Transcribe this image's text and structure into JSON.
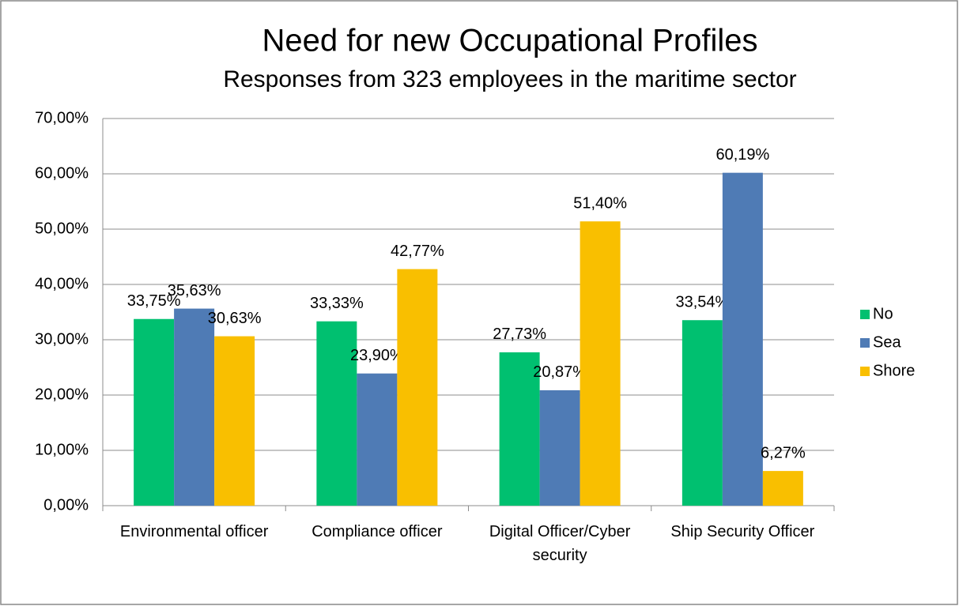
{
  "chart_data": {
    "type": "bar",
    "title": "Need for new Occupational Profiles",
    "subtitle": "Responses from 323 employees in the maritime sector",
    "categories": [
      "Environmental officer",
      "Compliance officer",
      "Digital Officer/Cyber security",
      "Ship Security Officer"
    ],
    "series": [
      {
        "name": "No",
        "color": "#00c070",
        "values": [
          33.75,
          33.33,
          27.73,
          33.54
        ],
        "value_labels": [
          "33,75%",
          "33,33%",
          "27,73%",
          "33,54%"
        ]
      },
      {
        "name": "Sea",
        "color": "#4f7bb5",
        "values": [
          35.63,
          23.9,
          20.87,
          60.19
        ],
        "value_labels": [
          "35,63%",
          "23,90%",
          "20,87%",
          "60,19%"
        ]
      },
      {
        "name": "Shore",
        "color": "#f9bf00",
        "values": [
          30.63,
          42.77,
          51.4,
          6.27
        ],
        "value_labels": [
          "30,63%",
          "42,77%",
          "51,40%",
          "6,27%"
        ]
      }
    ],
    "ylim": [
      0,
      70
    ],
    "yticks": [
      {
        "value": 0,
        "label": "0,00%"
      },
      {
        "value": 10,
        "label": "10,00%"
      },
      {
        "value": 20,
        "label": "20,00%"
      },
      {
        "value": 30,
        "label": "30,00%"
      },
      {
        "value": 40,
        "label": "40,00%"
      },
      {
        "value": 50,
        "label": "50,00%"
      },
      {
        "value": 60,
        "label": "60,00%"
      },
      {
        "value": 70,
        "label": "70,00%"
      }
    ],
    "grid": true,
    "legend": "right"
  }
}
